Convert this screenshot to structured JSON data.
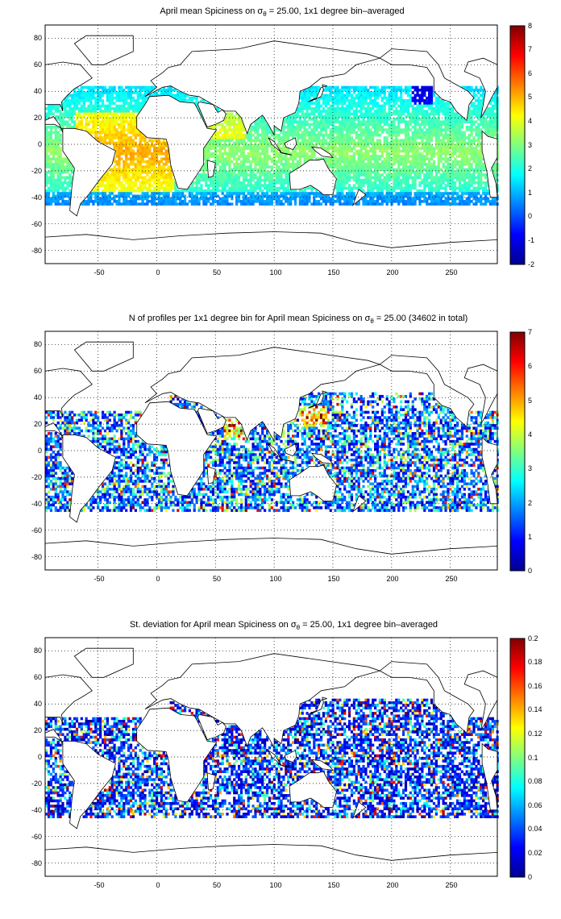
{
  "chart_data": [
    {
      "type": "heatmap",
      "title_pre": "April mean Spiciness on σ",
      "title_sub": "θ",
      "title_post": " = 25.00, 1x1 degree bin–averaged",
      "x_ticks": [
        "-50",
        "0",
        "50",
        "100",
        "150",
        "200",
        "250"
      ],
      "y_ticks": [
        "80",
        "60",
        "40",
        "20",
        "0",
        "-20",
        "-40",
        "-60",
        "-80"
      ],
      "xlim": [
        -95,
        290
      ],
      "ylim": [
        -90,
        90
      ],
      "grid": true,
      "colormap": "jet",
      "colorbar": {
        "min": -2,
        "max": 8,
        "ticks": [
          "8",
          "7",
          "6",
          "5",
          "4",
          "3",
          "2",
          "1",
          "0",
          "-1",
          "-2"
        ]
      }
    },
    {
      "type": "heatmap",
      "title_pre": "N of profiles per 1x1 degree bin for April mean Spiciness on σ",
      "title_sub": "θ",
      "title_post": " = 25.00 (34602 in total)",
      "x_ticks": [
        "-50",
        "0",
        "50",
        "100",
        "150",
        "200",
        "250"
      ],
      "y_ticks": [
        "80",
        "60",
        "40",
        "20",
        "0",
        "-20",
        "-40",
        "-60",
        "-80"
      ],
      "xlim": [
        -95,
        290
      ],
      "ylim": [
        -90,
        90
      ],
      "grid": true,
      "colormap": "jet",
      "colorbar": {
        "min": 0,
        "max": 7,
        "ticks": [
          "7",
          "6",
          "5",
          "4",
          "3",
          "2",
          "1",
          "0"
        ]
      }
    },
    {
      "type": "heatmap",
      "title_pre": "St. deviation for April mean Spiciness on σ",
      "title_sub": "θ",
      "title_post": " = 25.00, 1x1 degree bin–averaged",
      "x_ticks": [
        "-50",
        "0",
        "50",
        "100",
        "150",
        "200",
        "250"
      ],
      "y_ticks": [
        "80",
        "60",
        "40",
        "20",
        "0",
        "-20",
        "-40",
        "-60",
        "-80"
      ],
      "xlim": [
        -95,
        290
      ],
      "ylim": [
        -90,
        90
      ],
      "grid": true,
      "colormap": "jet",
      "colorbar": {
        "min": 0,
        "max": 0.2,
        "ticks": [
          "0.2",
          "0.18",
          "0.16",
          "0.14",
          "0.12",
          "0.1",
          "0.08",
          "0.06",
          "0.04",
          "0.02",
          "0"
        ]
      }
    }
  ]
}
